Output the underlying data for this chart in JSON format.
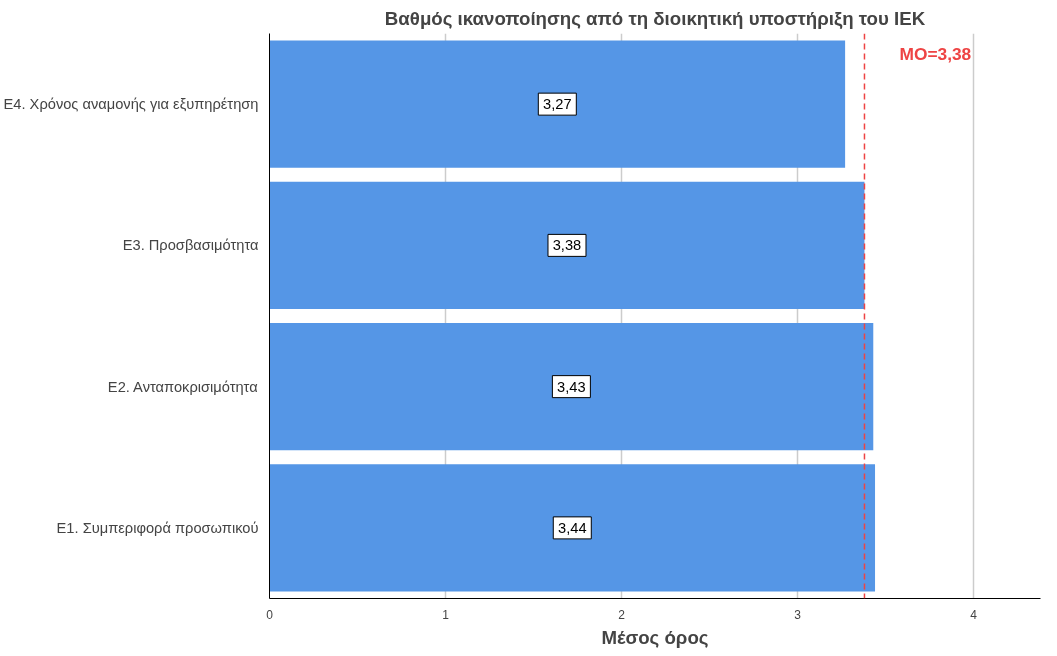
{
  "chart_data": {
    "type": "bar",
    "orientation": "horizontal",
    "title": "Βαθμός ικανοποίησης από τη διοικητική υποστήριξη του ΙΕΚ",
    "xlabel": "Μέσος όρος",
    "categories": [
      "Ε4. Χρόνος αναμονής για εξυπηρέτηση",
      "Ε3. Προσβασιμότητα",
      "Ε2. Ανταποκρισιμότητα",
      "Ε1. Συμπεριφορά προσωπικού"
    ],
    "values": [
      3.27,
      3.38,
      3.43,
      3.44
    ],
    "value_labels": [
      "3,27",
      "3,38",
      "3,43",
      "3,44"
    ],
    "color": "#5596e6",
    "xlim": [
      0,
      4.38
    ],
    "xticks": [
      0,
      1,
      2,
      3,
      4
    ],
    "grid": "x",
    "ref_lines": [
      {
        "axis": "x",
        "value": 3.38,
        "label": "ΜΟ=3,38",
        "color": "#ee4444",
        "line_style": "dashed"
      }
    ]
  }
}
